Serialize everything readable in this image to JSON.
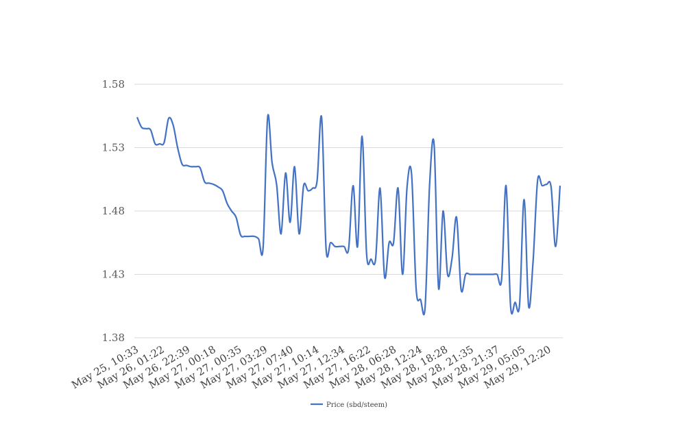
{
  "chart_data": {
    "type": "line",
    "title": "",
    "xlabel": "",
    "ylabel": "",
    "ylim": [
      1.38,
      1.58
    ],
    "y_ticks": [
      "1.58",
      "1.53",
      "1.48",
      "1.43",
      "1.38"
    ],
    "y_tick_values": [
      1.58,
      1.53,
      1.48,
      1.43,
      1.38
    ],
    "x_tick_labels": [
      "May 25, 10:33",
      "May 26, 01:22",
      "May 26, 22:39",
      "May 27, 00:18",
      "May 27, 00:35",
      "May 27, 03:29",
      "May 27, 07:40",
      "May 27, 10:14",
      "May 27, 12:34",
      "May 27, 16:22",
      "May 28, 06:28",
      "May 28, 12:24",
      "May 28, 18:28",
      "May 28, 21:35",
      "May 28, 21:37",
      "May 29, 05:05",
      "May 29, 12:20"
    ],
    "grid": true,
    "legend_position": "bottom",
    "series": [
      {
        "name": "Price (sbd/steem)",
        "color": "#4472c4",
        "values": [
          1.554,
          1.546,
          1.545,
          1.544,
          1.533,
          1.533,
          1.534,
          1.553,
          1.548,
          1.53,
          1.517,
          1.516,
          1.515,
          1.515,
          1.514,
          1.503,
          1.502,
          1.501,
          1.499,
          1.496,
          1.486,
          1.48,
          1.475,
          1.461,
          1.46,
          1.46,
          1.46,
          1.458,
          1.451,
          1.554,
          1.518,
          1.501,
          1.462,
          1.51,
          1.471,
          1.515,
          1.462,
          1.5,
          1.496,
          1.498,
          1.504,
          1.554,
          1.45,
          1.455,
          1.452,
          1.452,
          1.452,
          1.45,
          1.5,
          1.452,
          1.539,
          1.446,
          1.442,
          1.442,
          1.498,
          1.428,
          1.455,
          1.455,
          1.498,
          1.43,
          1.499,
          1.509,
          1.419,
          1.41,
          1.404,
          1.5,
          1.533,
          1.419,
          1.48,
          1.43,
          1.443,
          1.475,
          1.418,
          1.43,
          1.43,
          1.43,
          1.43,
          1.43,
          1.43,
          1.43,
          1.43,
          1.426,
          1.5,
          1.405,
          1.408,
          1.406,
          1.489,
          1.405,
          1.44,
          1.504,
          1.5,
          1.501,
          1.499,
          1.452,
          1.5
        ]
      }
    ]
  }
}
